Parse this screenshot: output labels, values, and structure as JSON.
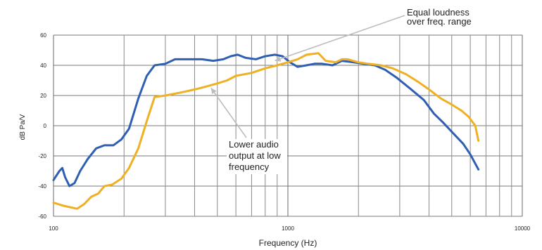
{
  "chart_data": {
    "type": "line",
    "title": "",
    "xlabel": "Frequency (Hz)",
    "ylabel": "dB Pa/V",
    "x_scale": "log",
    "xlim": [
      100,
      10000
    ],
    "ylim": [
      -60,
      60
    ],
    "grid": true,
    "x_tick_labels": [
      "100",
      "1000",
      "10000"
    ],
    "y_tick_labels": [
      "60",
      "40",
      "20",
      "0",
      "-20",
      "-40",
      "-60"
    ],
    "series": [
      {
        "color": "#2f5fb3",
        "points": [
          [
            100,
            -36
          ],
          [
            106,
            -30
          ],
          [
            109,
            -28
          ],
          [
            112,
            -34
          ],
          [
            117,
            -40
          ],
          [
            123,
            -38
          ],
          [
            130,
            -30
          ],
          [
            140,
            -22
          ],
          [
            152,
            -15
          ],
          [
            165,
            -13
          ],
          [
            180,
            -13
          ],
          [
            195,
            -9
          ],
          [
            210,
            -2
          ],
          [
            230,
            18
          ],
          [
            250,
            33
          ],
          [
            270,
            40
          ],
          [
            300,
            41
          ],
          [
            330,
            44
          ],
          [
            380,
            44
          ],
          [
            430,
            44
          ],
          [
            480,
            43
          ],
          [
            530,
            44
          ],
          [
            570,
            46
          ],
          [
            610,
            47
          ],
          [
            660,
            45
          ],
          [
            730,
            44
          ],
          [
            800,
            46
          ],
          [
            880,
            47
          ],
          [
            950,
            46
          ],
          [
            1020,
            42
          ],
          [
            1100,
            39
          ],
          [
            1200,
            40
          ],
          [
            1300,
            41
          ],
          [
            1400,
            41
          ],
          [
            1550,
            40
          ],
          [
            1700,
            43
          ],
          [
            1900,
            42
          ],
          [
            2100,
            41
          ],
          [
            2350,
            40
          ],
          [
            2600,
            37
          ],
          [
            2900,
            32
          ],
          [
            3300,
            25
          ],
          [
            3800,
            17
          ],
          [
            4200,
            8
          ],
          [
            4600,
            2
          ],
          [
            5000,
            -4
          ],
          [
            5600,
            -12
          ],
          [
            6000,
            -19
          ],
          [
            6500,
            -29
          ]
        ]
      },
      {
        "color": "#f0b023",
        "points": [
          [
            100,
            -51
          ],
          [
            110,
            -53
          ],
          [
            118,
            -54
          ],
          [
            126,
            -55
          ],
          [
            135,
            -52
          ],
          [
            145,
            -47
          ],
          [
            155,
            -45
          ],
          [
            165,
            -40
          ],
          [
            178,
            -39
          ],
          [
            195,
            -35
          ],
          [
            210,
            -28
          ],
          [
            230,
            -15
          ],
          [
            250,
            3
          ],
          [
            270,
            19
          ],
          [
            300,
            20
          ],
          [
            350,
            22
          ],
          [
            400,
            24
          ],
          [
            450,
            26
          ],
          [
            500,
            28
          ],
          [
            550,
            30
          ],
          [
            600,
            33
          ],
          [
            700,
            35
          ],
          [
            800,
            38
          ],
          [
            900,
            40
          ],
          [
            1000,
            42
          ],
          [
            1100,
            44
          ],
          [
            1200,
            47
          ],
          [
            1350,
            48
          ],
          [
            1450,
            43
          ],
          [
            1600,
            42
          ],
          [
            1700,
            44
          ],
          [
            1800,
            44
          ],
          [
            2000,
            42
          ],
          [
            2200,
            41
          ],
          [
            2500,
            40
          ],
          [
            2800,
            38
          ],
          [
            3200,
            34
          ],
          [
            3600,
            29
          ],
          [
            4000,
            24
          ],
          [
            4500,
            18
          ],
          [
            5000,
            14
          ],
          [
            5500,
            10
          ],
          [
            5900,
            6
          ],
          [
            6300,
            0
          ],
          [
            6500,
            -10
          ]
        ]
      }
    ],
    "annotations": [
      {
        "lines": [
          "Equal loudness",
          "over freq. range"
        ],
        "arrow_to": [
          880,
          43
        ]
      },
      {
        "lines": [
          "Lower audio",
          "output at low",
          "frequency"
        ],
        "arrow_to": [
          470,
          25
        ]
      }
    ]
  }
}
